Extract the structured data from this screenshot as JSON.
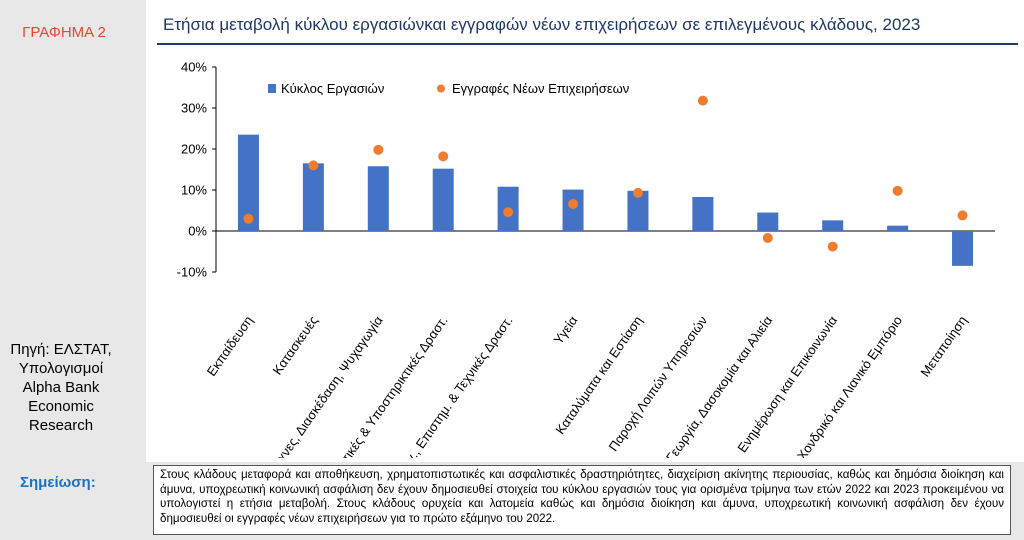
{
  "figure_label": "ΓΡΑΦΗΜΑ 2",
  "title": "Ετήσια μεταβολή κύκλου εργασιώνκαι εγγραφών νέων επιχειρήσεων σε επιλεγμένους κλάδους, 2023",
  "source_lines": [
    "Πηγή: ΕΛΣΤΑΤ,",
    "Υπολογισμοί",
    "Alpha Bank",
    "Economic",
    "Research"
  ],
  "note": {
    "label": "Σημείωση:",
    "text": "Στους κλάδους μεταφορά και αποθήκευση, χρηματοπιστωτικές και ασφαλιστικές δραστηριότητες, διαχείριση ακίνητης περιουσίας, καθώς και δημόσια διοίκηση και άμυνα, υποχρεωτική κοινωνική ασφάλιση δεν έχουν δημοσιευθεί στοιχεία του κύκλου εργασιών τους για ορισμένα τρίμηνα των ετών 2022 και 2023 προκειμένου να υπολογιστεί η ετήσια μεταβολή. Στους κλάδους ορυχεία και λατομεία καθώς και δημόσια διοίκηση και άμυνα, υποχρεωτική κοινωνική ασφάλιση δεν έχουν δημοσιευθεί οι εγγραφές νέων επιχειρήσεων για το πρώτο εξάμηνο του 2022."
  },
  "colors": {
    "bar": "#4472c4",
    "dot": "#ed7d31",
    "title": "#1f3864",
    "label_red": "#e8472f",
    "note_label": "#1f6fbf"
  },
  "chart_data": {
    "type": "bar",
    "title": "Ετήσια μεταβολή κύκλου εργασιώνκαι εγγραφών νέων επιχειρήσεων σε επιλεγμένους κλάδους, 2023",
    "categories": [
      "Εκπαίδευση",
      "Κατασκευές",
      "Τέχνες, Διασκέδαση, Ψυχαγωγία",
      "Διοικητικές & Υποστηρικτικές Δραστ.",
      "Επαγγ., Επιστημ. & Τεχνικές Δραστ.",
      "Υγεία",
      "Καταλύματα και Εστίαση",
      "Παροχή Λοιπών Υπηρεσιών",
      "Γεωργία, Δασοκομία και Αλιεία",
      "Ενημέρωση και Επικοινωνία",
      "Χονδρικό και Λιανικό Εμπόριο",
      "Μεταποίηση"
    ],
    "series": [
      {
        "name": "Κύκλος Εργασιών",
        "kind": "bar",
        "values": [
          23.5,
          16.5,
          15.8,
          15.2,
          10.8,
          10.1,
          9.8,
          8.3,
          4.5,
          2.6,
          1.3,
          -8.5
        ]
      },
      {
        "name": "Εγγραφές Νέων Επιχειρήσεων",
        "kind": "dot",
        "values": [
          3.0,
          16.0,
          19.8,
          18.2,
          4.6,
          6.6,
          9.3,
          31.8,
          -1.7,
          -3.8,
          9.8,
          3.8
        ]
      }
    ],
    "ylim": [
      -10,
      40
    ],
    "yticks": [
      -10,
      0,
      10,
      20,
      30,
      40
    ],
    "ytick_labels": [
      "-10%",
      "0%",
      "10%",
      "20%",
      "30%",
      "40%"
    ],
    "legend_placement": "top-left",
    "grid": false
  }
}
